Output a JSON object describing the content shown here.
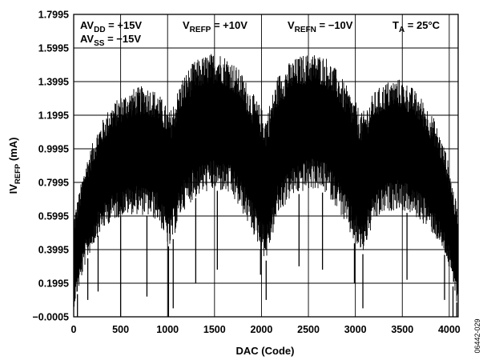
{
  "chart_data": {
    "type": "line",
    "title": "",
    "xlabel": "DAC (Code)",
    "ylabel": {
      "main": "IV",
      "sub": "REFP",
      "unit": " (mA)"
    },
    "xlim": [
      0,
      4095
    ],
    "ylim": [
      -0.0005,
      1.7995
    ],
    "x_ticks": [
      "0",
      "500",
      "1000",
      "1500",
      "2000",
      "2500",
      "3000",
      "3500",
      "4000"
    ],
    "x_tick_values": [
      0,
      500,
      1000,
      1500,
      2000,
      2500,
      3000,
      3500,
      4000
    ],
    "y_ticks": [
      "−0.0005",
      "0.1995",
      "0.3995",
      "0.5995",
      "0.7995",
      "0.9995",
      "1.1995",
      "1.3995",
      "1.5995",
      "1.7995"
    ],
    "y_tick_values": [
      -0.0005,
      0.1995,
      0.3995,
      0.5995,
      0.7995,
      0.9995,
      1.1995,
      1.3995,
      1.5995,
      1.7995
    ],
    "grid": true,
    "annotations": {
      "avdd": {
        "main": "AV",
        "sub": "DD",
        "rest": " = +15V"
      },
      "avss": {
        "main": "AV",
        "sub": "SS",
        "rest": " = −15V"
      },
      "vrefp": {
        "main": "V",
        "sub": "REFP",
        "rest": " = +10V"
      },
      "vrefn": {
        "main": "V",
        "sub": "REFN",
        "rest": " = −10V"
      },
      "ta": {
        "main": "T",
        "sub": "A",
        "rest": " = 25°C"
      }
    },
    "series": [
      {
        "color": "#000000",
        "envelope_x": [
          0,
          128,
          256,
          384,
          512,
          640,
          768,
          896,
          1024,
          1152,
          1280,
          1408,
          1536,
          1664,
          1792,
          1920,
          2048,
          2176,
          2304,
          2432,
          2560,
          2688,
          2816,
          2944,
          3072,
          3200,
          3328,
          3456,
          3584,
          3712,
          3840,
          3968,
          4095
        ],
        "envelope_max": [
          0.6,
          0.92,
          1.12,
          1.25,
          1.32,
          1.36,
          1.38,
          1.34,
          1.22,
          1.42,
          1.52,
          1.56,
          1.58,
          1.54,
          1.45,
          1.32,
          1.2,
          1.44,
          1.52,
          1.56,
          1.57,
          1.55,
          1.46,
          1.34,
          1.21,
          1.34,
          1.4,
          1.42,
          1.38,
          1.3,
          1.18,
          0.98,
          0.62
        ],
        "envelope_min": [
          0.05,
          0.32,
          0.48,
          0.56,
          0.6,
          0.61,
          0.6,
          0.57,
          0.4,
          0.62,
          0.7,
          0.74,
          0.75,
          0.72,
          0.62,
          0.48,
          0.33,
          0.6,
          0.7,
          0.74,
          0.76,
          0.73,
          0.64,
          0.48,
          0.36,
          0.56,
          0.62,
          0.64,
          0.61,
          0.56,
          0.48,
          0.35,
          0.05
        ],
        "spike_x": [
          40,
          150,
          260,
          500,
          780,
          1010,
          1060,
          1300,
          1530,
          1990,
          2050,
          2400,
          2650,
          2990,
          3080,
          3550,
          3950,
          4040,
          4080
        ],
        "spike_min": [
          0.0,
          0.1,
          0.15,
          0.0,
          0.12,
          0.0,
          0.05,
          0.2,
          0.28,
          0.25,
          0.1,
          0.3,
          0.28,
          0.2,
          0.05,
          0.22,
          0.1,
          0.0,
          0.0
        ]
      }
    ]
  },
  "figure_id": "06442-029"
}
